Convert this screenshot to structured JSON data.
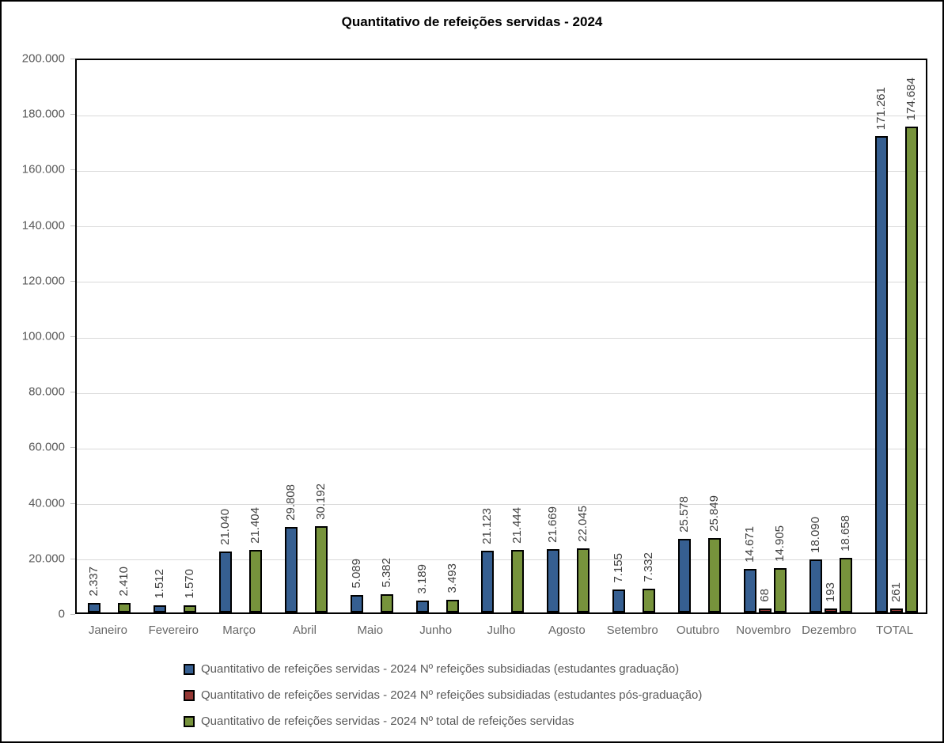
{
  "chart_data": {
    "type": "bar",
    "title": "Quantitativo de refeições servidas - 2024",
    "categories": [
      "Janeiro",
      "Fevereiro",
      "Março",
      "Abril",
      "Maio",
      "Junho",
      "Julho",
      "Agosto",
      "Setembro",
      "Outubro",
      "Novembro",
      "Dezembro",
      "TOTAL"
    ],
    "series": [
      {
        "name": "Quantitativo de refeições servidas - 2024 Nº refeições subsidiadas (estudantes graduação)",
        "color": "#365F91",
        "values": [
          2337,
          1512,
          21040,
          29808,
          5089,
          3189,
          21123,
          21669,
          7155,
          25578,
          14671,
          18090,
          171261
        ],
        "labels": [
          "2.337",
          "1.512",
          "21.040",
          "29.808",
          "5.089",
          "3.189",
          "21.123",
          "21.669",
          "7.155",
          "25.578",
          "14.671",
          "18.090",
          "171.261"
        ]
      },
      {
        "name": "Quantitativo de refeições servidas - 2024 Nº refeições subsidiadas (estudantes pós-graduação)",
        "color": "#953734",
        "values": [
          0,
          0,
          0,
          0,
          0,
          0,
          0,
          0,
          0,
          0,
          68,
          193,
          261
        ],
        "labels": [
          "",
          "",
          "",
          "",
          "",
          "",
          "",
          "",
          "",
          "",
          "68",
          "193",
          "261"
        ]
      },
      {
        "name": "Quantitativo de refeições servidas - 2024 Nº total de refeições servidas",
        "color": "#77933C",
        "values": [
          2410,
          1570,
          21404,
          30192,
          5382,
          3493,
          21444,
          22045,
          7332,
          25849,
          14905,
          18658,
          174684
        ],
        "labels": [
          "2.410",
          "1.570",
          "21.404",
          "30.192",
          "5.382",
          "3.493",
          "21.444",
          "22.045",
          "7.332",
          "25.849",
          "14.905",
          "18.658",
          "174.684"
        ]
      }
    ],
    "ylim": [
      0,
      200000
    ],
    "ytick_interval": 20000,
    "ytick_labels": [
      "0",
      "20.000",
      "40.000",
      "60.000",
      "80.000",
      "100.000",
      "120.000",
      "140.000",
      "160.000",
      "180.000",
      "200.000"
    ],
    "grid": true,
    "legend_position": "bottom",
    "colors": {
      "grid": "#D9D9D9",
      "axis_text": "#595959",
      "data_label_text": "#404040",
      "plot_border": "#000000",
      "bar_border": "#000000"
    }
  }
}
